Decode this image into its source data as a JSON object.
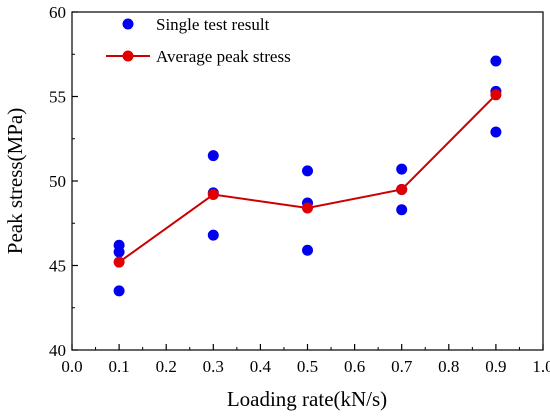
{
  "chart_data": {
    "type": "scatter",
    "title": "",
    "xlabel": "Loading rate(kN/s)",
    "ylabel": "Peak stress(MPa)",
    "xlim": [
      0.0,
      1.0
    ],
    "ylim": [
      40,
      60
    ],
    "x_ticks": [
      "0.0",
      "0.1",
      "0.2",
      "0.3",
      "0.4",
      "0.5",
      "0.6",
      "0.7",
      "0.8",
      "0.9",
      "1.0"
    ],
    "y_ticks": [
      "40",
      "45",
      "50",
      "55",
      "60"
    ],
    "grid": false,
    "legend_position": "top-left",
    "series": [
      {
        "name": "Single test result",
        "kind": "scatter",
        "color": "#0000ee",
        "points": [
          {
            "x": 0.1,
            "y": 46.2
          },
          {
            "x": 0.1,
            "y": 45.8
          },
          {
            "x": 0.1,
            "y": 43.5
          },
          {
            "x": 0.3,
            "y": 51.5
          },
          {
            "x": 0.3,
            "y": 49.3
          },
          {
            "x": 0.3,
            "y": 46.8
          },
          {
            "x": 0.5,
            "y": 50.6
          },
          {
            "x": 0.5,
            "y": 48.7
          },
          {
            "x": 0.5,
            "y": 45.9
          },
          {
            "x": 0.7,
            "y": 50.7
          },
          {
            "x": 0.7,
            "y": 49.5
          },
          {
            "x": 0.7,
            "y": 48.3
          },
          {
            "x": 0.9,
            "y": 57.1
          },
          {
            "x": 0.9,
            "y": 55.3
          },
          {
            "x": 0.9,
            "y": 52.9
          }
        ]
      },
      {
        "name": "Average peak stress",
        "kind": "line",
        "color": "#e00000",
        "line_color": "#cc0000",
        "points": [
          {
            "x": 0.1,
            "y": 45.2
          },
          {
            "x": 0.3,
            "y": 49.2
          },
          {
            "x": 0.5,
            "y": 48.4
          },
          {
            "x": 0.7,
            "y": 49.5
          },
          {
            "x": 0.9,
            "y": 55.1
          }
        ]
      }
    ]
  }
}
